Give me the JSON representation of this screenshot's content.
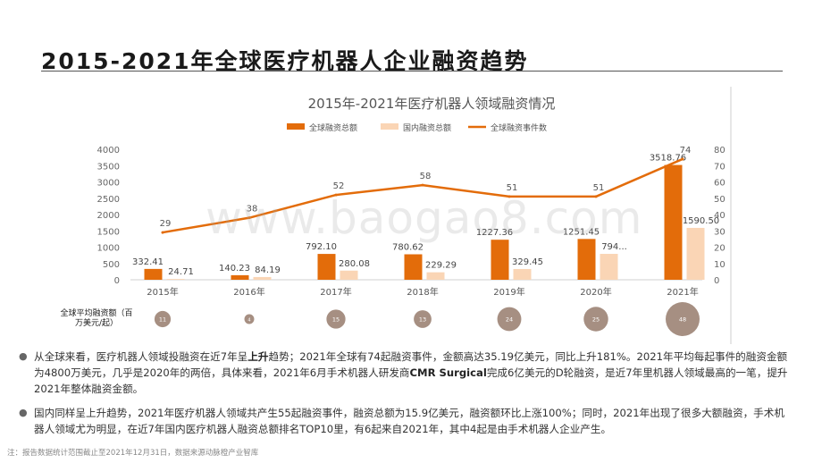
{
  "header": {
    "title": "2015-2021年全球医疗机器人企业融资趋势"
  },
  "chart_data": {
    "type": "bar",
    "title": "2015年-2021年医疗机器人领域融资情况",
    "categories": [
      "2015年",
      "2016年",
      "2017年",
      "2018年",
      "2019年",
      "2020年",
      "2021年"
    ],
    "series": [
      {
        "name": "全球融资总额",
        "kind": "bar",
        "color": "#E36C0A",
        "axis": "left",
        "values": [
          332.41,
          140.23,
          792.1,
          780.62,
          1227.36,
          1251.45,
          3518.76
        ],
        "labels": [
          "332.41",
          "140.23",
          "792.10",
          "780.62",
          "1227.36",
          "1251.45",
          "3518.76"
        ]
      },
      {
        "name": "国内融资总额",
        "kind": "bar",
        "color": "#FAD5B5",
        "axis": "left",
        "values": [
          24.71,
          84.19,
          280.08,
          229.29,
          329.45,
          794,
          1590.5
        ],
        "labels": [
          "24.71",
          "84.19",
          "280.08",
          "229.29",
          "329.45",
          "794...",
          "1590.50"
        ]
      },
      {
        "name": "全球融资事件数",
        "kind": "line",
        "color": "#E36C0A",
        "axis": "right",
        "values": [
          29,
          38,
          52,
          58,
          51,
          51,
          74
        ],
        "labels": [
          "29",
          "38",
          "52",
          "58",
          "51",
          "51",
          "74"
        ]
      }
    ],
    "left_axis": {
      "min": 0,
      "max": 4000,
      "ticks": [
        "0",
        "500",
        "1000",
        "1500",
        "2000",
        "2500",
        "3000",
        "3500",
        "4000"
      ]
    },
    "right_axis": {
      "min": 0,
      "max": 80,
      "ticks": [
        "0",
        "10",
        "20",
        "30",
        "40",
        "50",
        "60",
        "70",
        "80"
      ]
    },
    "legend_position": "top",
    "grid": false,
    "bubbles": {
      "label": "全球平均融资额（百万美元/起）",
      "color": "#A68F82",
      "values": [
        11,
        4,
        15,
        13,
        24,
        25,
        48
      ]
    }
  },
  "bullets": [
    {
      "before": "从全球来看，医疗机器人领域投融资在近7年呈",
      "bold1": "上升",
      "middle": "趋势；2021年全球有74起融资事件，金额高达35.19亿美元，同比上升181%。2021年平均每起事件的融资金额为4800万美元，几乎是2020年的两倍，具体来看，2021年6月手术机器人研发商",
      "bold2": "CMR Surgical",
      "after": "完成6亿美元的D轮融资，是近7年里机器人领域最高的一笔，提升2021年整体融资金额。"
    },
    {
      "text": "国内同样呈上升趋势，2021年医疗机器人领域共产生55起融资事件，融资总额为15.9亿美元，融资额环比上涨100%；同时，2021年出现了很多大额融资，手术机器人领域尤为明显，在近7年国内医疗机器人融资总额排名TOP10里，有6起来自2021年，其中4起是由手术机器人企业产生。"
    }
  ],
  "footnote": "注：报告数据统计范围截止至2021年12月31日，数据来源动脉橙产业智库",
  "watermark": "www.baogao8.com",
  "bullet_glyph": "●"
}
